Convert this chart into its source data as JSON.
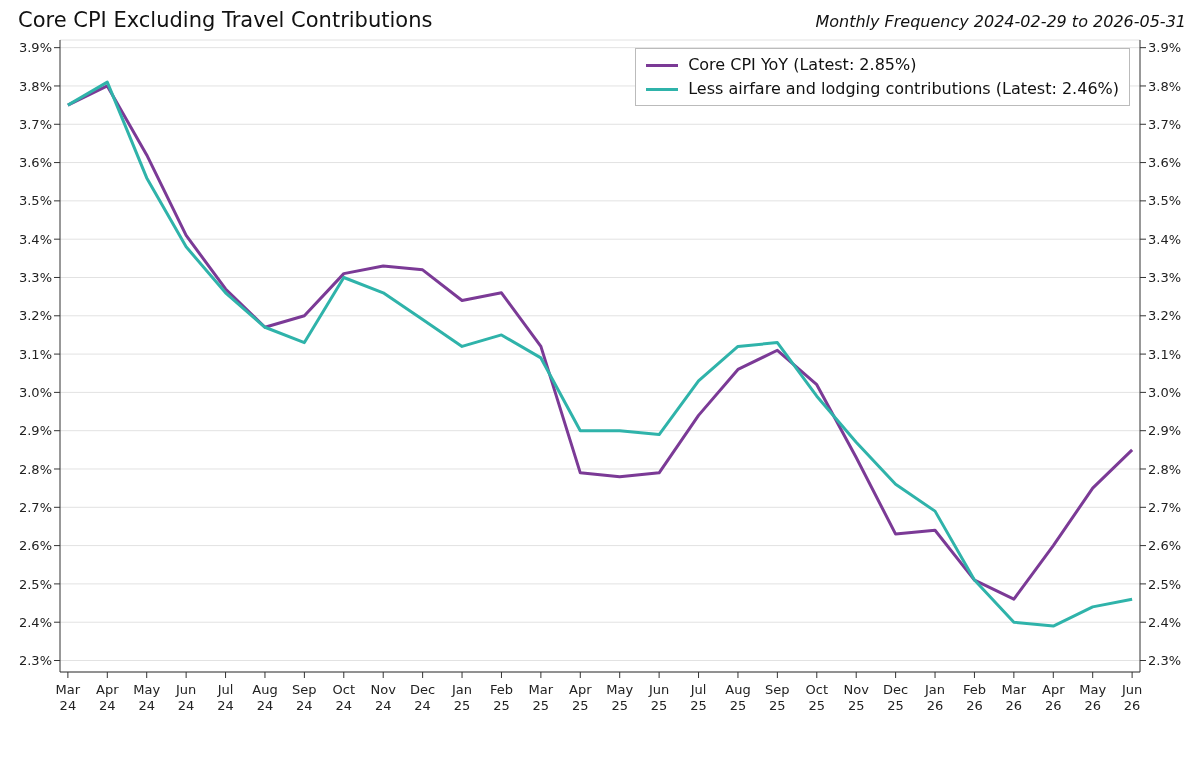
{
  "chart_data": {
    "type": "line",
    "title": "Core CPI Excluding Travel Contributions",
    "subtitle": "Monthly Frequency 2024-02-29 to 2026-05-31",
    "categories": [
      "Mar 24",
      "Apr 24",
      "May 24",
      "Jun 24",
      "Jul 24",
      "Aug 24",
      "Sep 24",
      "Oct 24",
      "Nov 24",
      "Dec 24",
      "Jan 25",
      "Feb 25",
      "Mar 25",
      "Apr 25",
      "May 25",
      "Jun 25",
      "Jul 25",
      "Aug 25",
      "Sep 25",
      "Oct 25",
      "Nov 25",
      "Dec 25",
      "Jan 26",
      "Feb 26",
      "Mar 26",
      "Apr 26",
      "May 26",
      "Jun 26"
    ],
    "series": [
      {
        "name": "Core CPI YoY (Latest: 2.85%)",
        "color": "#7b3a96",
        "values": [
          3.75,
          3.8,
          3.62,
          3.41,
          3.27,
          3.17,
          3.2,
          3.31,
          3.33,
          3.32,
          3.24,
          3.26,
          3.12,
          2.79,
          2.78,
          2.79,
          2.94,
          3.06,
          3.11,
          3.02,
          2.83,
          2.63,
          2.64,
          2.51,
          2.46,
          2.6,
          2.75,
          2.85
        ]
      },
      {
        "name": "Less airfare and lodging contributions (Latest: 2.46%)",
        "color": "#2fb3aa",
        "values": [
          3.75,
          3.81,
          3.56,
          3.38,
          3.26,
          3.17,
          3.13,
          3.3,
          3.26,
          3.19,
          3.12,
          3.15,
          3.09,
          2.9,
          2.9,
          2.89,
          3.03,
          3.12,
          3.13,
          2.99,
          2.87,
          2.76,
          2.69,
          2.51,
          2.4,
          2.39,
          2.44,
          2.46
        ]
      }
    ],
    "ylim": [
      2.27,
      3.92
    ],
    "yticks": [
      {
        "value": 2.3,
        "label": "2.3%"
      },
      {
        "value": 2.4,
        "label": "2.4%"
      },
      {
        "value": 2.5,
        "label": "2.5%"
      },
      {
        "value": 2.6,
        "label": "2.6%"
      },
      {
        "value": 2.7,
        "label": "2.7%"
      },
      {
        "value": 2.8,
        "label": "2.8%"
      },
      {
        "value": 2.9,
        "label": "2.9%"
      },
      {
        "value": 3.0,
        "label": "3.0%"
      },
      {
        "value": 3.1,
        "label": "3.1%"
      },
      {
        "value": 3.2,
        "label": "3.2%"
      },
      {
        "value": 3.3,
        "label": "3.3%"
      },
      {
        "value": 3.4,
        "label": "3.4%"
      },
      {
        "value": 3.5,
        "label": "3.5%"
      },
      {
        "value": 3.6,
        "label": "3.6%"
      },
      {
        "value": 3.7,
        "label": "3.7%"
      },
      {
        "value": 3.8,
        "label": "3.8%"
      },
      {
        "value": 3.9,
        "label": "3.9%"
      }
    ],
    "y2lim": [
      2.27,
      3.92
    ],
    "y2ticks": [
      {
        "value": 2.3,
        "label": "2.3%"
      },
      {
        "value": 2.4,
        "label": "2.4%"
      },
      {
        "value": 2.5,
        "label": "2.5%"
      },
      {
        "value": 2.6,
        "label": "2.6%"
      },
      {
        "value": 2.7,
        "label": "2.7%"
      },
      {
        "value": 2.8,
        "label": "2.8%"
      },
      {
        "value": 2.9,
        "label": "2.9%"
      },
      {
        "value": 3.0,
        "label": "3.0%"
      },
      {
        "value": 3.1,
        "label": "3.1%"
      },
      {
        "value": 3.2,
        "label": "3.2%"
      },
      {
        "value": 3.3,
        "label": "3.3%"
      },
      {
        "value": 3.4,
        "label": "3.4%"
      },
      {
        "value": 3.5,
        "label": "3.5%"
      },
      {
        "value": 3.6,
        "label": "3.6%"
      },
      {
        "value": 3.7,
        "label": "3.7%"
      },
      {
        "value": 3.8,
        "label": "3.8%"
      },
      {
        "value": 3.9,
        "label": "3.9%"
      }
    ],
    "grid": "y",
    "legend": "top right",
    "marker": "none",
    "line_style": "solid"
  }
}
